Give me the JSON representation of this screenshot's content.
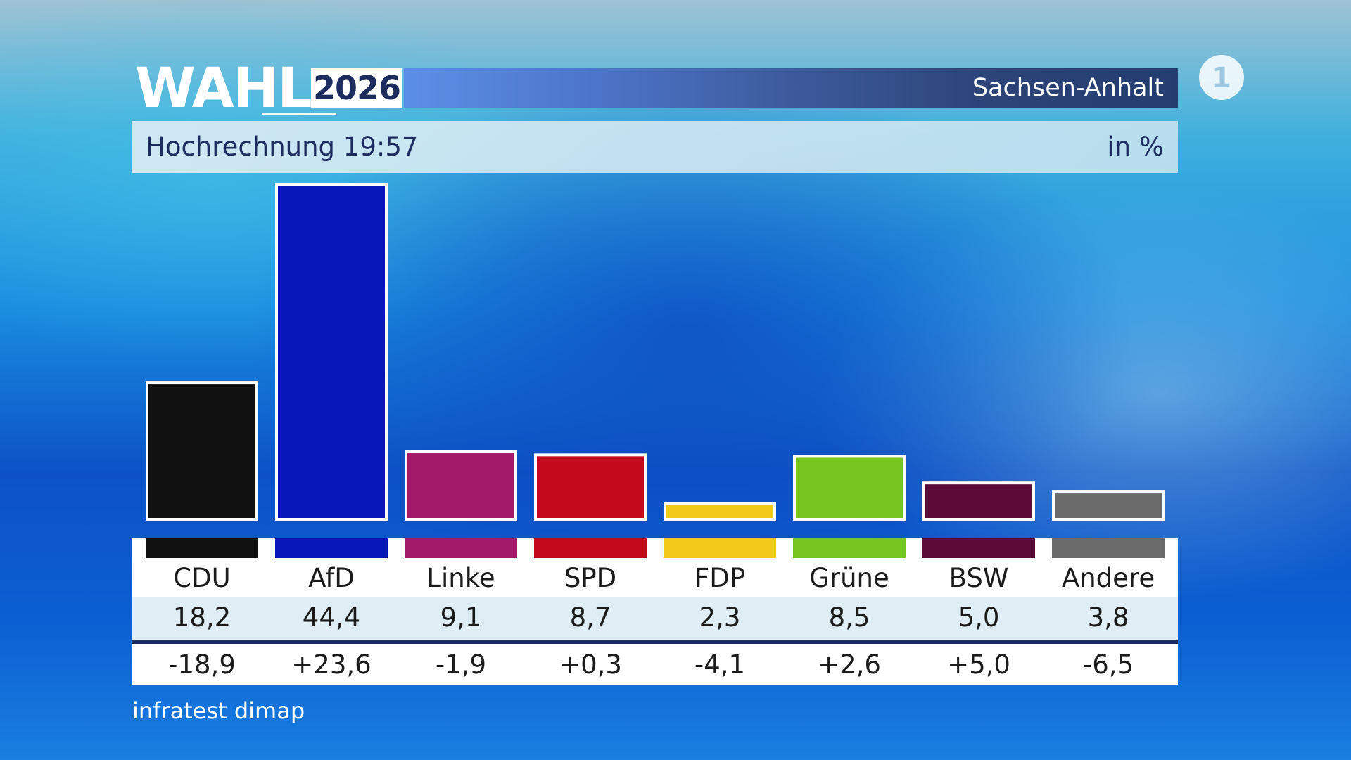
{
  "header": {
    "wahl": "WAHL",
    "year": "2026",
    "region": "Sachsen-Anhalt",
    "subtitle": "Hochrechnung 19:57",
    "unit": "in %"
  },
  "source": "infratest dimap",
  "logo": {
    "icon": "ard-das-erste-icon",
    "glyph": "1"
  },
  "chart_data": {
    "type": "bar",
    "title": "Hochrechnung 19:57",
    "ylabel": "",
    "ylim": [
      0,
      45
    ],
    "grid": false,
    "categories": [
      "CDU",
      "AfD",
      "Linke",
      "SPD",
      "FDP",
      "Grüne",
      "BSW",
      "Andere"
    ],
    "values": [
      18.2,
      44.4,
      9.1,
      8.7,
      2.3,
      8.5,
      5.0,
      3.8
    ],
    "value_labels": [
      "18,2",
      "44,4",
      "9,1",
      "8,7",
      "2,3",
      "8,5",
      "5,0",
      "3,8"
    ],
    "diff_labels": [
      "-18,9",
      "+23,6",
      "-1,9",
      "+0,3",
      "-4,1",
      "+2,6",
      "+5,0",
      "-6,5"
    ],
    "colors": [
      "#111111",
      "#0616b8",
      "#a31a6a",
      "#c20a1c",
      "#f2cb1a",
      "#76c520",
      "#5c0a38",
      "#6b6b6b"
    ]
  }
}
